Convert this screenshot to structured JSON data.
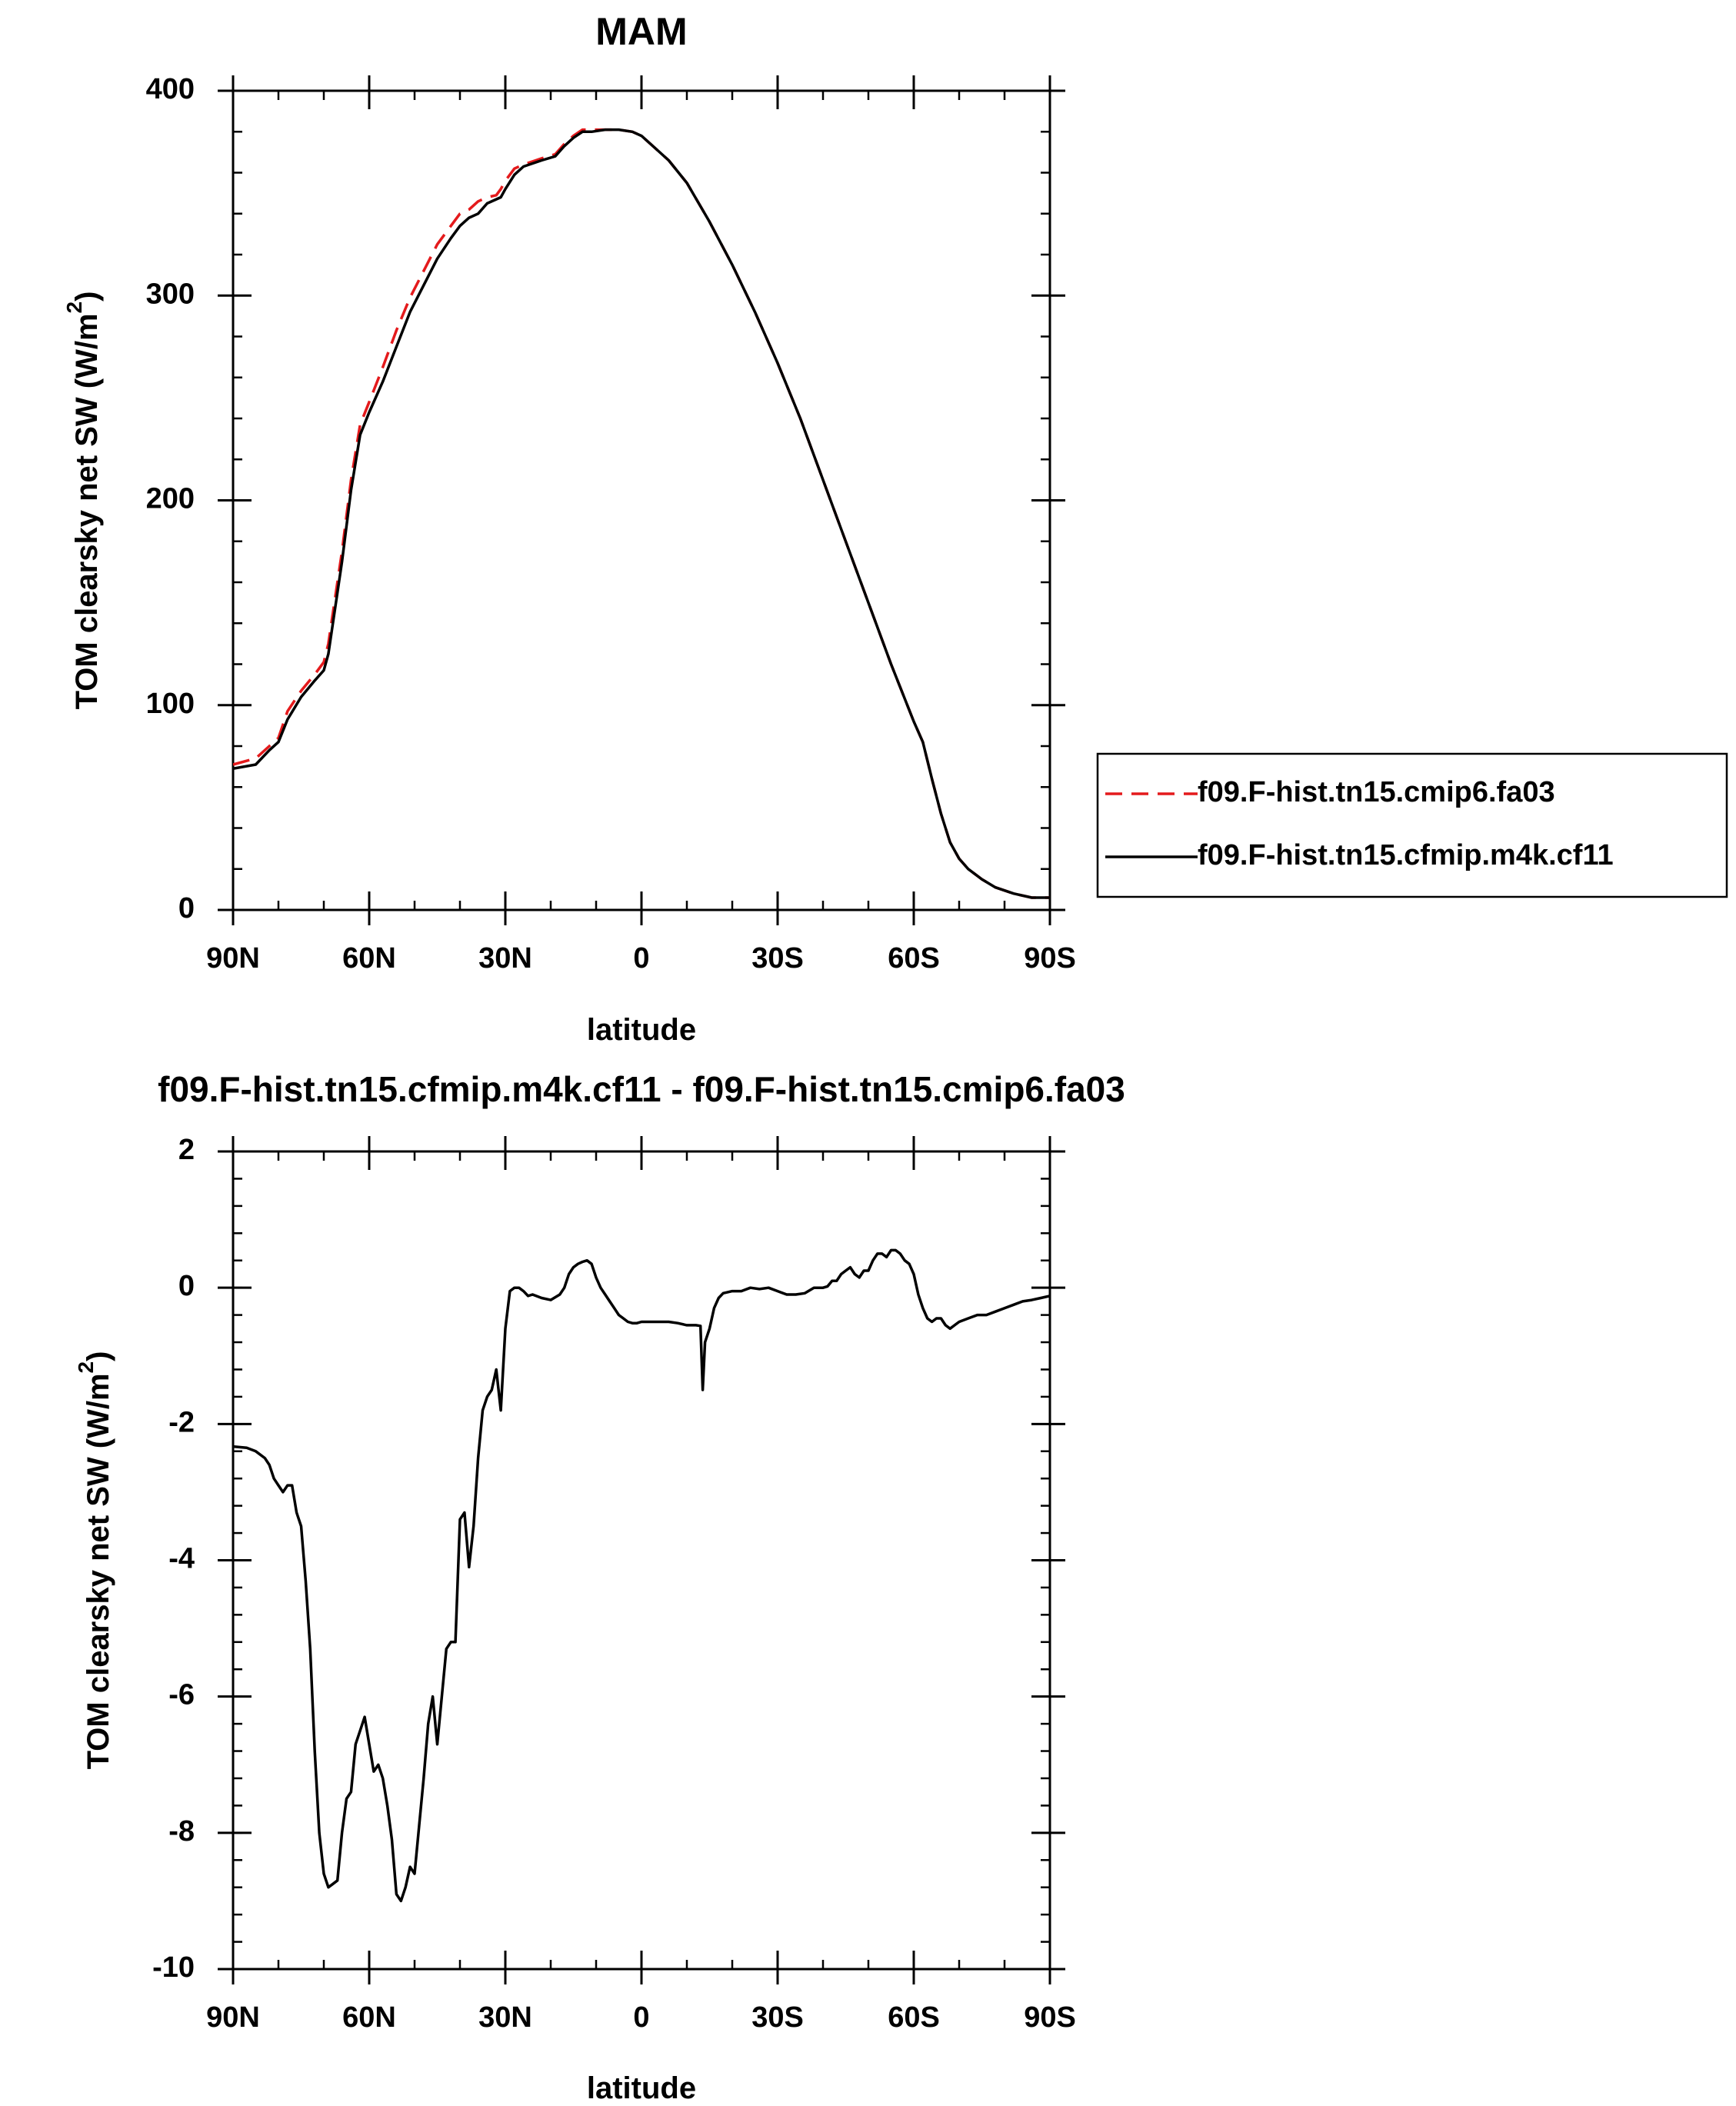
{
  "chart_data": [
    {
      "type": "line",
      "title": "MAM",
      "xlabel": "latitude",
      "ylabel": "TOM clearsky net SW (W/m",
      "ylabel_sup": "2",
      "ylabel_end": ")",
      "xlim": [
        90,
        -90
      ],
      "ylim": [
        0,
        400
      ],
      "x_ticks": [
        90,
        60,
        30,
        0,
        -30,
        -60,
        -90
      ],
      "x_tick_labels": [
        "90N",
        "60N",
        "30N",
        "0",
        "30S",
        "60S",
        "90S"
      ],
      "y_ticks": [
        0,
        100,
        200,
        300,
        400
      ],
      "y_tick_labels": [
        "0",
        "100",
        "200",
        "300",
        "400"
      ],
      "grid": false,
      "legend_position": "right",
      "series": [
        {
          "name": "f09.F-hist.tn15.cmip6.fa03",
          "color": "#e41a1c",
          "dash": "dashed",
          "x": [
            90,
            85,
            82,
            80,
            78,
            75,
            72,
            70,
            69,
            68,
            66,
            64,
            62,
            60,
            57,
            54,
            51,
            48,
            45,
            42,
            40,
            38,
            36,
            34,
            32,
            31,
            30,
            28,
            26,
            22,
            19,
            17,
            15,
            13,
            11,
            8,
            5,
            2,
            0,
            -3,
            -6,
            -10,
            -15,
            -20,
            -25,
            -30,
            -35,
            -40,
            -45,
            -50,
            -55,
            -60,
            -62,
            -64,
            -66,
            -68,
            -70,
            -72,
            -75,
            -78,
            -82,
            -86,
            -90
          ],
          "y": [
            71,
            74,
            80,
            84,
            97,
            107,
            115,
            121,
            130,
            145,
            175,
            210,
            237,
            248,
            265,
            283,
            299,
            312,
            325,
            334,
            340,
            342,
            346,
            348,
            349,
            352,
            356,
            362,
            364,
            367,
            369,
            374,
            378,
            381,
            381,
            381,
            381,
            380,
            378,
            372,
            366,
            355,
            336,
            315,
            292,
            267,
            240,
            210,
            180,
            150,
            120,
            92,
            82,
            64,
            47,
            33,
            25,
            20,
            15,
            11,
            8,
            6,
            6
          ]
        },
        {
          "name": "f09.F-hist.tn15.cfmip.m4k.cf11",
          "color": "#000000",
          "dash": "solid",
          "x": [
            90,
            85,
            82,
            80,
            78,
            75,
            72,
            70,
            69,
            68,
            66,
            64,
            62,
            60,
            57,
            54,
            51,
            48,
            45,
            42,
            40,
            38,
            36,
            34,
            32,
            31,
            30,
            28,
            26,
            22,
            19,
            17,
            15,
            13,
            11,
            8,
            5,
            2,
            0,
            -3,
            -6,
            -10,
            -15,
            -20,
            -25,
            -30,
            -35,
            -40,
            -45,
            -50,
            -55,
            -60,
            -62,
            -64,
            -66,
            -68,
            -70,
            -72,
            -75,
            -78,
            -82,
            -86,
            -90
          ],
          "y": [
            69,
            71,
            78,
            82,
            93,
            104,
            112,
            117,
            125,
            140,
            170,
            205,
            232,
            243,
            258,
            275,
            292,
            305,
            318,
            328,
            334,
            338,
            340,
            345,
            347,
            348,
            352,
            359,
            363,
            366,
            368,
            373,
            377,
            380,
            380,
            381,
            381,
            380,
            378,
            372,
            366,
            355,
            336,
            315,
            292,
            267,
            240,
            210,
            180,
            150,
            120,
            92,
            82,
            64,
            47,
            33,
            25,
            20,
            15,
            11,
            8,
            6,
            6
          ]
        }
      ]
    },
    {
      "type": "line",
      "title": "f09.F-hist.tn15.cfmip.m4k.cf11 - f09.F-hist.tn15.cmip6.fa03",
      "xlabel": "latitude",
      "ylabel": "TOM clearsky net SW (W/m",
      "ylabel_sup": "2",
      "ylabel_end": ")",
      "xlim": [
        90,
        -90
      ],
      "ylim": [
        -10,
        2
      ],
      "x_ticks": [
        90,
        60,
        30,
        0,
        -30,
        -60,
        -90
      ],
      "x_tick_labels": [
        "90N",
        "60N",
        "30N",
        "0",
        "30S",
        "60S",
        "90S"
      ],
      "y_ticks": [
        -10,
        -8,
        -6,
        -4,
        -2,
        0,
        2
      ],
      "y_tick_labels": [
        "-10",
        "-8",
        "-6",
        "-4",
        "-2",
        "0",
        "2"
      ],
      "grid": false,
      "series": [
        {
          "name": "",
          "color": "#000000",
          "dash": "solid",
          "x": [
            90,
            87,
            85,
            83,
            82,
            81,
            80,
            79,
            78,
            77,
            76,
            75,
            74,
            73,
            72,
            71,
            70,
            69,
            68,
            67,
            66,
            65,
            64,
            63,
            62,
            61,
            60,
            59,
            58,
            57,
            56,
            55,
            54,
            53,
            52,
            51,
            50,
            49,
            48,
            47,
            46,
            45,
            44,
            43,
            42,
            41,
            40,
            39,
            38,
            37,
            36,
            35,
            34,
            33,
            32,
            31,
            30,
            29,
            28,
            27,
            26,
            25,
            24,
            22,
            20,
            18,
            17,
            16,
            15,
            14,
            13,
            12,
            11,
            10,
            9,
            8,
            7,
            6,
            5,
            4,
            3,
            2,
            1,
            0,
            -2,
            -4,
            -6,
            -8,
            -10,
            -12,
            -13,
            -13.5,
            -14,
            -15,
            -16,
            -17,
            -18,
            -20,
            -22,
            -24,
            -26,
            -28,
            -30,
            -32,
            -34,
            -36,
            -38,
            -40,
            -41,
            -42,
            -43,
            -44,
            -45,
            -46,
            -47,
            -48,
            -49,
            -50,
            -51,
            -52,
            -53,
            -54,
            -55,
            -56,
            -57,
            -58,
            -59,
            -60,
            -61,
            -62,
            -63,
            -64,
            -65,
            -66,
            -67,
            -68,
            -69,
            -70,
            -72,
            -74,
            -76,
            -78,
            -80,
            -82,
            -84,
            -86,
            -88,
            -90
          ],
          "y": [
            -2.33,
            -2.35,
            -2.4,
            -2.5,
            -2.6,
            -2.8,
            -2.9,
            -3.0,
            -2.9,
            -2.9,
            -3.3,
            -3.5,
            -4.3,
            -5.3,
            -6.8,
            -8.0,
            -8.6,
            -8.8,
            -8.75,
            -8.7,
            -8.0,
            -7.5,
            -7.4,
            -6.7,
            -6.5,
            -6.3,
            -6.7,
            -7.1,
            -7.0,
            -7.2,
            -7.6,
            -8.1,
            -8.9,
            -9.0,
            -8.8,
            -8.5,
            -8.6,
            -7.9,
            -7.2,
            -6.4,
            -6.0,
            -6.7,
            -6.0,
            -5.3,
            -5.2,
            -5.2,
            -3.4,
            -3.3,
            -4.1,
            -3.5,
            -2.5,
            -1.8,
            -1.6,
            -1.5,
            -1.2,
            -1.8,
            -0.6,
            -0.05,
            0.0,
            0.0,
            -0.05,
            -0.12,
            -0.1,
            -0.15,
            -0.18,
            -0.1,
            0.0,
            0.2,
            0.3,
            0.35,
            0.38,
            0.4,
            0.35,
            0.15,
            0.0,
            -0.1,
            -0.2,
            -0.3,
            -0.4,
            -0.45,
            -0.5,
            -0.52,
            -0.52,
            -0.5,
            -0.5,
            -0.5,
            -0.5,
            -0.52,
            -0.55,
            -0.55,
            -0.56,
            -1.5,
            -0.8,
            -0.6,
            -0.3,
            -0.15,
            -0.08,
            -0.05,
            -0.05,
            0.0,
            -0.02,
            0.0,
            -0.05,
            -0.1,
            -0.1,
            -0.08,
            0.0,
            0.0,
            0.02,
            0.1,
            0.1,
            0.2,
            0.25,
            0.3,
            0.2,
            0.15,
            0.25,
            0.25,
            0.4,
            0.5,
            0.5,
            0.45,
            0.55,
            0.55,
            0.5,
            0.4,
            0.35,
            0.2,
            -0.1,
            -0.3,
            -0.45,
            -0.5,
            -0.45,
            -0.45,
            -0.55,
            -0.6,
            -0.55,
            -0.5,
            -0.45,
            -0.4,
            -0.4,
            -0.35,
            -0.3,
            -0.25,
            -0.2,
            -0.18,
            -0.15,
            -0.12
          ]
        }
      ]
    }
  ]
}
